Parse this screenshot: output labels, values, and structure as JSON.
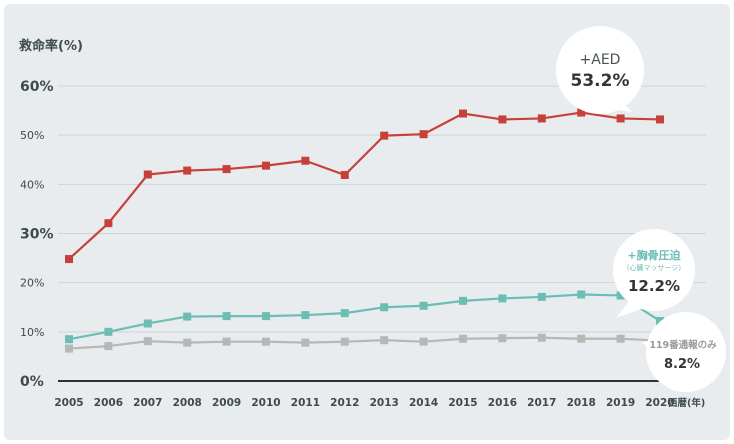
{
  "chart_data": {
    "type": "line",
    "ylabel": "救命率(%)",
    "xlabel": "西暦(年)",
    "categories": [
      "2005",
      "2006",
      "2007",
      "2008",
      "2009",
      "2010",
      "2011",
      "2012",
      "2013",
      "2014",
      "2015",
      "2016",
      "2017",
      "2018",
      "2019",
      "2020"
    ],
    "ylim": [
      0,
      60
    ],
    "y_ticks": [
      "0%",
      "10%",
      "20%",
      "30%",
      "40%",
      "50%",
      "60%"
    ],
    "grid": true,
    "series": [
      {
        "name": "+AED",
        "color": "#c8403a",
        "values": [
          24.8,
          32.1,
          42.0,
          42.8,
          43.1,
          43.8,
          44.8,
          41.9,
          49.9,
          50.2,
          54.4,
          53.2,
          53.4,
          54.6,
          53.4,
          53.2
        ]
      },
      {
        "name": "+胸骨圧迫",
        "color": "#6dbdb7",
        "values": [
          8.5,
          10.0,
          11.7,
          13.1,
          13.2,
          13.2,
          13.4,
          13.8,
          15.0,
          15.3,
          16.3,
          16.8,
          17.1,
          17.6,
          17.4,
          12.2
        ]
      },
      {
        "name": "119番通報のみ",
        "color": "#b7b7b5",
        "values": [
          6.6,
          7.1,
          8.1,
          7.8,
          8.0,
          8.0,
          7.8,
          8.0,
          8.3,
          8.0,
          8.6,
          8.7,
          8.8,
          8.6,
          8.6,
          8.2
        ]
      }
    ],
    "annotations": [
      {
        "series": 0,
        "label_lines": [
          "+AED"
        ],
        "value_text": "53.2%"
      },
      {
        "series": 1,
        "label_lines": [
          "+胸骨圧迫",
          "(心臓マッサージ)"
        ],
        "value_text": "12.2%"
      },
      {
        "series": 2,
        "label_lines": [
          "119番通報のみ"
        ],
        "value_text": "8.2%"
      }
    ],
    "colors": {
      "background": "#e8ecee",
      "grid": "#cfd4d6",
      "axis": "#2c3336",
      "text": "#3f4a4f"
    }
  }
}
